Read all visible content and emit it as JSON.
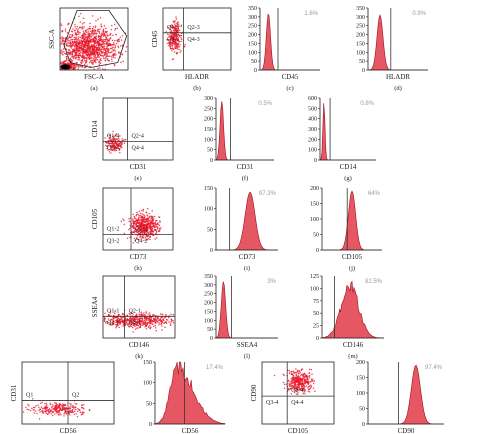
{
  "colors": {
    "dots": "#e8192c",
    "hist_fill": "#e03a48",
    "hist_edge": "#a40f1c",
    "axis": "#222222",
    "pct_text": "#9a9a9a",
    "dense_core": "#000000"
  },
  "chart_data": [
    {
      "id": "a",
      "type": "scatter",
      "caption": "(a)",
      "xlabel": "FSC-A",
      "ylabel": "SSC-A",
      "gate": "polygon",
      "xlim": [
        0,
        1
      ],
      "ylim": [
        0,
        1
      ],
      "clusters": [
        {
          "x": 0.42,
          "y": 0.38,
          "sx": 0.22,
          "sy": 0.16,
          "n": 1200
        },
        {
          "x": 0.1,
          "y": 0.06,
          "sx": 0.06,
          "sy": 0.04,
          "n": 220
        }
      ]
    },
    {
      "id": "b",
      "type": "scatter",
      "caption": "(b)",
      "xlabel": "HLADR",
      "ylabel": "CD45",
      "quadrant": [
        0.3,
        0.6
      ],
      "quadrant_labels": [
        "Q1-3",
        "Q2-3",
        "Q3-3",
        "Q4-3"
      ],
      "xlim": [
        0,
        1
      ],
      "ylim": [
        0,
        1
      ],
      "clusters": [
        {
          "x": 0.18,
          "y": 0.53,
          "sx": 0.05,
          "sy": 0.12,
          "n": 260
        }
      ]
    },
    {
      "id": "c",
      "type": "histogram",
      "caption": "(c)",
      "xlabel": "CD45",
      "percent": "1.6%",
      "ylim": [
        0,
        350
      ],
      "yticks": [
        0,
        50,
        100,
        150,
        200,
        250,
        300,
        350
      ],
      "marker": 0.3,
      "xlim": [
        0,
        1
      ],
      "peaks": [
        {
          "mu": 0.14,
          "sd": 0.035,
          "h": 320
        }
      ]
    },
    {
      "id": "d",
      "type": "histogram",
      "caption": "(d)",
      "xlabel": "HLADR",
      "percent": "0.9%",
      "ylim": [
        0,
        350
      ],
      "yticks": [
        0,
        50,
        100,
        150,
        200,
        250,
        300,
        350
      ],
      "marker": 0.38,
      "xlim": [
        0,
        1
      ],
      "peaks": [
        {
          "mu": 0.2,
          "sd": 0.05,
          "h": 310
        }
      ]
    },
    {
      "id": "e",
      "type": "scatter",
      "caption": "(e)",
      "xlabel": "CD31",
      "ylabel": "CD14",
      "quadrant": [
        0.35,
        0.3
      ],
      "quadrant_labels": [
        "Q1-4",
        "Q2-4",
        "Q3-4",
        "Q4-4"
      ],
      "xlim": [
        0,
        1
      ],
      "ylim": [
        0,
        1
      ],
      "clusters": [
        {
          "x": 0.17,
          "y": 0.26,
          "sx": 0.06,
          "sy": 0.06,
          "n": 160
        }
      ]
    },
    {
      "id": "f",
      "type": "histogram",
      "caption": "(f)",
      "xlabel": "CD31",
      "percent": "0.5%",
      "ylim": [
        0,
        300
      ],
      "yticks": [
        0,
        50,
        100,
        150,
        200,
        250,
        300
      ],
      "marker": 0.25,
      "xlim": [
        0,
        1
      ],
      "peaks": [
        {
          "mu": 0.1,
          "sd": 0.03,
          "h": 285
        }
      ]
    },
    {
      "id": "g",
      "type": "histogram",
      "caption": "(g)",
      "xlabel": "CD14",
      "percent": "0.8%",
      "ylim": [
        0,
        600
      ],
      "yticks": [
        0,
        100,
        200,
        300,
        400,
        500,
        600
      ],
      "marker": 0.18,
      "xlim": [
        0,
        1
      ],
      "peaks": [
        {
          "mu": 0.07,
          "sd": 0.018,
          "h": 560
        }
      ]
    },
    {
      "id": "h",
      "type": "scatter",
      "caption": "(h)",
      "xlabel": "CD73",
      "ylabel": "CD105",
      "quadrant": [
        0.4,
        0.25
      ],
      "quadrant_labels": [
        "Q1-2",
        "Q2-2",
        "Q3-2",
        "Q4-2"
      ],
      "xlim": [
        0,
        1
      ],
      "ylim": [
        0,
        1
      ],
      "clusters": [
        {
          "x": 0.58,
          "y": 0.38,
          "sx": 0.1,
          "sy": 0.1,
          "n": 520
        }
      ]
    },
    {
      "id": "i",
      "type": "histogram",
      "caption": "(i)",
      "xlabel": "CD73",
      "percent": "97.3%",
      "ylim": [
        0,
        150
      ],
      "yticks": [
        0,
        50,
        100,
        150
      ],
      "marker": 0.22,
      "xlim": [
        0,
        1
      ],
      "peaks": [
        {
          "mu": 0.55,
          "sd": 0.08,
          "h": 140
        }
      ]
    },
    {
      "id": "j",
      "type": "histogram",
      "caption": "(j)",
      "xlabel": "CD105",
      "percent": "64%",
      "ylim": [
        0,
        200
      ],
      "yticks": [
        0,
        50,
        100,
        150,
        200
      ],
      "marker": 0.42,
      "xlim": [
        0,
        1
      ],
      "peaks": [
        {
          "mu": 0.5,
          "sd": 0.06,
          "h": 190
        }
      ]
    },
    {
      "id": "k",
      "type": "scatter",
      "caption": "(k)",
      "xlabel": "CD146",
      "ylabel": "SSEA4",
      "quadrant": [
        0.3,
        0.35
      ],
      "quadrant_labels": [
        "Q1-1",
        "Q2-1",
        "Q3-1",
        "Q4-1"
      ],
      "xlim": [
        0,
        1
      ],
      "ylim": [
        0,
        1
      ],
      "clusters": [
        {
          "x": 0.45,
          "y": 0.28,
          "sx": 0.26,
          "sy": 0.06,
          "n": 520
        }
      ]
    },
    {
      "id": "l",
      "type": "histogram",
      "caption": "(l)",
      "xlabel": "SSEA4",
      "percent": "3%",
      "ylim": [
        0,
        350
      ],
      "yticks": [
        0,
        50,
        100,
        150,
        200,
        250,
        300,
        350
      ],
      "marker": 0.25,
      "xlim": [
        0,
        1
      ],
      "peaks": [
        {
          "mu": 0.12,
          "sd": 0.035,
          "h": 320
        }
      ]
    },
    {
      "id": "m",
      "type": "histogram",
      "caption": "(m)",
      "xlabel": "CD146",
      "percent": "82.5%",
      "ylim": [
        0,
        125
      ],
      "yticks": [
        0,
        25,
        50,
        75,
        100,
        125
      ],
      "marker": 0.2,
      "xlim": [
        0,
        1
      ],
      "noisy": true,
      "peaks": [
        {
          "mu": 0.45,
          "sd": 0.14,
          "h": 105
        }
      ]
    },
    {
      "id": "n",
      "type": "scatter",
      "caption": "",
      "xlabel": "CD56",
      "ylabel": "CD31",
      "quadrant": [
        0.5,
        0.38
      ],
      "quadrant_labels": [
        "Q1",
        "Q2",
        "",
        ""
      ],
      "xlim": [
        0,
        1
      ],
      "ylim": [
        0,
        1
      ],
      "clusters": [
        {
          "x": 0.4,
          "y": 0.24,
          "sx": 0.14,
          "sy": 0.05,
          "n": 260
        }
      ]
    },
    {
      "id": "o",
      "type": "histogram",
      "caption": "",
      "xlabel": "CD56",
      "percent": "17.4%",
      "ylim": [
        0,
        150
      ],
      "yticks": [
        0,
        50,
        100,
        150
      ],
      "marker": 0.42,
      "xlim": [
        0,
        1
      ],
      "noisy": true,
      "skew": true,
      "peaks": [
        {
          "mu": 0.32,
          "sd": 0.1,
          "h": 140
        }
      ]
    },
    {
      "id": "p",
      "type": "scatter",
      "caption": "",
      "xlabel": "CD105",
      "ylabel": "CD90",
      "quadrant": [
        0.35,
        0.45
      ],
      "quadrant_labels": [
        "",
        "Q2-4",
        "Q3-4",
        "Q4-4"
      ],
      "xlim": [
        0,
        1
      ],
      "ylim": [
        0,
        1
      ],
      "clusters": [
        {
          "x": 0.52,
          "y": 0.68,
          "sx": 0.09,
          "sy": 0.09,
          "n": 340
        }
      ]
    },
    {
      "id": "q",
      "type": "histogram",
      "caption": "",
      "xlabel": "CD90",
      "percent": "97.4%",
      "ylim": [
        0,
        200
      ],
      "yticks": [
        0,
        50,
        100,
        150,
        200
      ],
      "marker": 0.4,
      "xlim": [
        0,
        1
      ],
      "peaks": [
        {
          "mu": 0.63,
          "sd": 0.06,
          "h": 190
        }
      ]
    }
  ]
}
